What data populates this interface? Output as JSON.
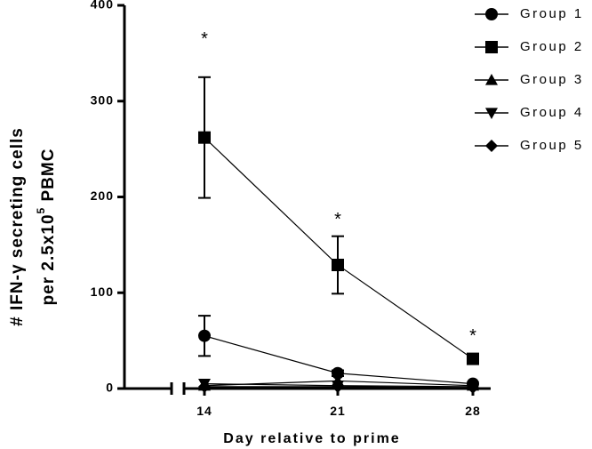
{
  "chart_data": {
    "type": "line",
    "title": "",
    "xlabel": "Day relative to prime",
    "ylabel_line1": "# IFN-γ secreting cells",
    "ylabel_line2_prefix": "per 2.5x10",
    "ylabel_line2_sup": "5",
    "ylabel_line2_suffix": " PBMC",
    "x": [
      14,
      21,
      28
    ],
    "xticks": [
      "14",
      "21",
      "28"
    ],
    "ylim": [
      0,
      400
    ],
    "yticks": [
      "0",
      "100",
      "200",
      "300",
      "400"
    ],
    "legend_position": "top-right",
    "series": [
      {
        "name": "Group 1",
        "marker": "circle",
        "values": [
          55,
          16,
          5
        ],
        "error": [
          21,
          3,
          2
        ]
      },
      {
        "name": "Group 2",
        "marker": "square",
        "values": [
          262,
          129,
          31
        ],
        "error": [
          63,
          30,
          5
        ]
      },
      {
        "name": "Group 3",
        "marker": "triangle-up",
        "values": [
          3,
          8,
          3
        ],
        "error": [
          1,
          1,
          1
        ]
      },
      {
        "name": "Group 4",
        "marker": "triangle-down",
        "values": [
          5,
          3,
          2
        ],
        "error": [
          1,
          1,
          1
        ]
      },
      {
        "name": "Group 5",
        "marker": "diamond",
        "values": [
          2,
          2,
          1
        ],
        "error": [
          1,
          1,
          1
        ]
      }
    ],
    "annotations": [
      {
        "x": 14,
        "text": "*"
      },
      {
        "x": 21,
        "text": "*"
      },
      {
        "x": 28,
        "text": "*"
      }
    ]
  }
}
